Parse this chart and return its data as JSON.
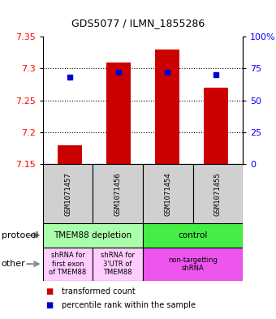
{
  "title": "GDS5077 / ILMN_1855286",
  "samples": [
    "GSM1071457",
    "GSM1071456",
    "GSM1071454",
    "GSM1071455"
  ],
  "bar_bottom": 7.15,
  "bar_tops": [
    7.18,
    7.31,
    7.33,
    7.27
  ],
  "percentile_values": [
    68,
    72,
    72,
    70
  ],
  "ylim_left": [
    7.15,
    7.35
  ],
  "ylim_right": [
    0,
    100
  ],
  "yticks_left": [
    7.15,
    7.2,
    7.25,
    7.3,
    7.35
  ],
  "ytick_labels_left": [
    "7.15",
    "7.2",
    "7.25",
    "7.3",
    "7.35"
  ],
  "yticks_right": [
    0,
    25,
    50,
    75,
    100
  ],
  "ytick_labels_right": [
    "0",
    "25",
    "50",
    "75",
    "100%"
  ],
  "bar_color": "#cc0000",
  "dot_color": "#0000cc",
  "bar_width": 0.5,
  "protocol_row": {
    "groups": [
      {
        "label": "TMEM88 depletion",
        "cols": [
          0,
          1
        ],
        "color": "#aaffaa"
      },
      {
        "label": "control",
        "cols": [
          2,
          3
        ],
        "color": "#44ee44"
      }
    ]
  },
  "other_row": {
    "groups": [
      {
        "label": "shRNA for\nfirst exon\nof TMEM88",
        "cols": [
          0
        ],
        "color": "#ffccff"
      },
      {
        "label": "shRNA for\n3'UTR of\nTMEM88",
        "cols": [
          1
        ],
        "color": "#ffccff"
      },
      {
        "label": "non-targetting\nshRNA",
        "cols": [
          2,
          3
        ],
        "color": "#ee55ee"
      }
    ]
  },
  "legend_items": [
    {
      "color": "#cc0000",
      "label": "  transformed count"
    },
    {
      "color": "#0000cc",
      "label": "  percentile rank within the sample"
    }
  ]
}
